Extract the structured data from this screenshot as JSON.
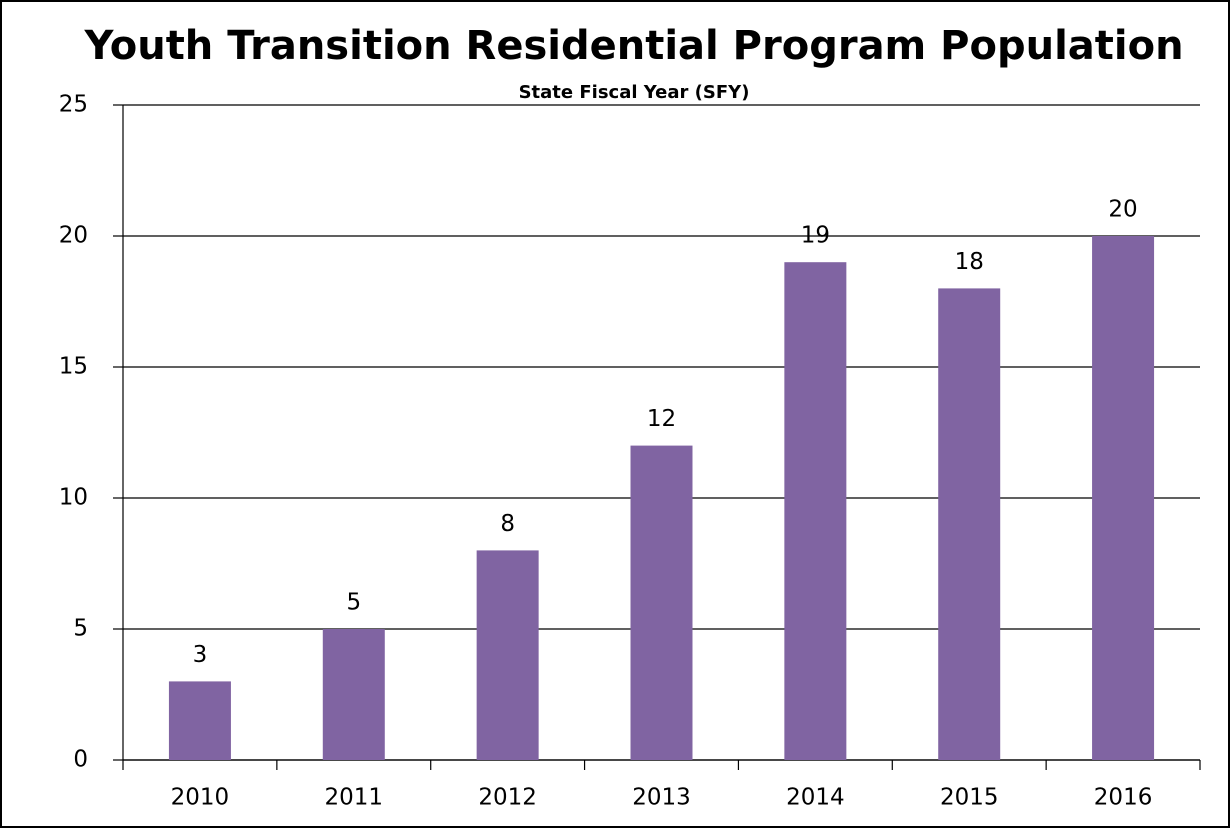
{
  "chart_data": {
    "type": "bar",
    "title": "Youth Transition Residential Program Population",
    "subtitle": "State Fiscal Year (SFY)",
    "categories": [
      "2010",
      "2011",
      "2012",
      "2013",
      "2014",
      "2015",
      "2016"
    ],
    "values": [
      3,
      5,
      8,
      12,
      19,
      18,
      20
    ],
    "color": "#8064a2",
    "ylim": [
      0,
      25
    ],
    "yticks": [
      0,
      5,
      10,
      15,
      20,
      25
    ],
    "grid": true
  }
}
